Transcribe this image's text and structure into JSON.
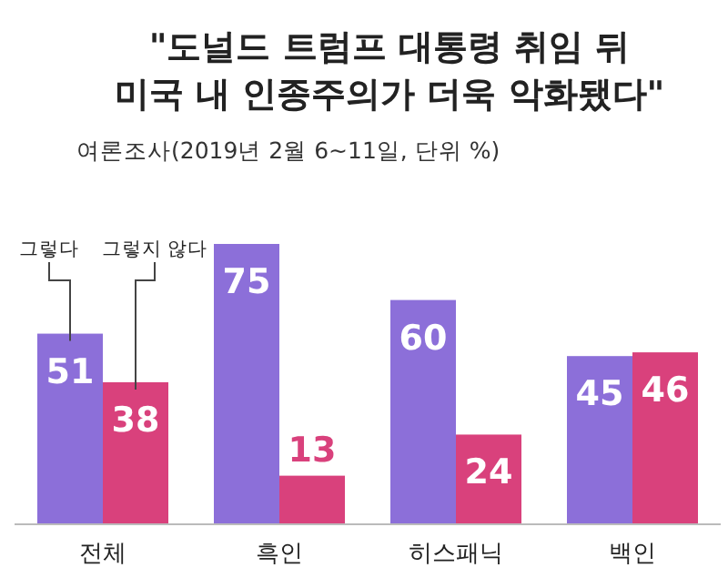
{
  "chart_data": {
    "type": "bar",
    "title": "\"도널드 트럼프 대통령 취임 뒤\n미국 내 인종주의가 더욱 악화됐다\"",
    "subtitle": "여론조사(2019년 2월 6~11일, 단위 %)",
    "categories": [
      "전체",
      "흑인",
      "히스패닉",
      "백인"
    ],
    "series": [
      {
        "name": "그렇다",
        "color": "#8c6fd9",
        "values": [
          51,
          75,
          60,
          45
        ]
      },
      {
        "name": "그렇지 않다",
        "color": "#d9417c",
        "values": [
          38,
          13,
          24,
          46
        ]
      }
    ],
    "data_labels": true,
    "legend": "top left"
  }
}
